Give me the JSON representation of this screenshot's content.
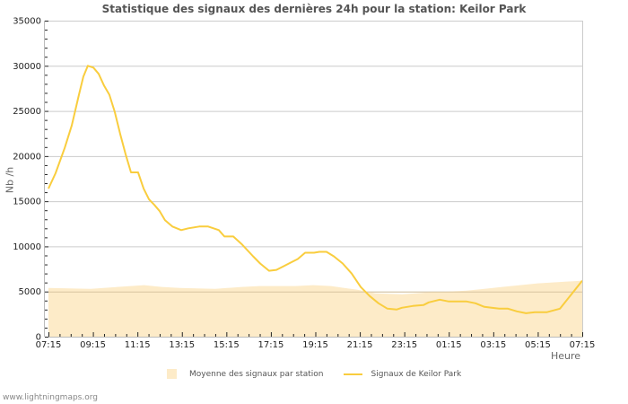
{
  "title": "Statistique des signaux des dernières 24h pour la station: Keilor Park",
  "footer": "www.lightningmaps.org",
  "colors": {
    "average_fill": "#fdebc8",
    "station_line": "#f9cd3e",
    "grid": "#cccccc",
    "avg_reference_line": "#d8c4a0"
  },
  "legend": {
    "average": "Moyenne des signaux par station",
    "station": "Signaux de Keilor Park"
  },
  "axes": {
    "ylabel": "Nb /h",
    "xlabel": "Heure"
  },
  "chart_data": {
    "type": "line",
    "title": "Statistique des signaux des dernières 24h pour la station: Keilor Park",
    "xlabel": "Heure",
    "ylabel": "Nb /h",
    "ylim": [
      0,
      35000
    ],
    "yticks": [
      0,
      5000,
      10000,
      15000,
      20000,
      25000,
      30000,
      35000
    ],
    "xticks": [
      "07:15",
      "09:15",
      "11:15",
      "13:15",
      "15:15",
      "17:15",
      "19:15",
      "21:15",
      "23:15",
      "01:15",
      "03:15",
      "05:15",
      "07:15"
    ],
    "grid": true,
    "legend_position": "bottom",
    "x_hours_range": [
      0,
      24
    ],
    "series": [
      {
        "name": "Moyenne des signaux par station",
        "kind": "area",
        "x_hours": [
          0,
          1.9,
          3.1,
          4.3,
          5.1,
          5.9,
          7.5,
          8.7,
          9.5,
          11.1,
          11.9,
          12.7,
          13.9,
          14.7,
          15.9,
          17.1,
          18.0,
          18.8,
          19.6,
          20.4,
          21.2,
          22.0,
          24.0
        ],
        "values": [
          5400,
          5300,
          5500,
          5700,
          5500,
          5400,
          5300,
          5500,
          5600,
          5600,
          5700,
          5600,
          5200,
          4800,
          4700,
          4900,
          5000,
          5100,
          5300,
          5500,
          5700,
          5900,
          6200
        ]
      },
      {
        "name": "Signaux de Keilor Park",
        "kind": "line",
        "x_hours": [
          0,
          0.32,
          0.73,
          1.05,
          1.37,
          1.57,
          1.77,
          2.02,
          2.26,
          2.5,
          2.74,
          2.98,
          3.23,
          3.47,
          3.71,
          4.03,
          4.28,
          4.52,
          4.76,
          5.0,
          5.24,
          5.57,
          5.97,
          6.29,
          6.78,
          7.18,
          7.42,
          7.66,
          7.91,
          8.31,
          8.71,
          9.2,
          9.52,
          9.92,
          10.25,
          10.57,
          10.89,
          11.21,
          11.54,
          11.94,
          12.18,
          12.5,
          12.83,
          13.23,
          13.63,
          14.04,
          14.44,
          14.84,
          15.24,
          15.65,
          15.89,
          16.38,
          16.86,
          17.1,
          17.59,
          18.0,
          18.8,
          19.2,
          19.6,
          19.92,
          20.26,
          20.66,
          21.06,
          21.47,
          21.87,
          22.4,
          23.0,
          24.0
        ],
        "values": [
          16400,
          18100,
          20900,
          23400,
          26800,
          28800,
          30000,
          29800,
          29100,
          27800,
          26800,
          24900,
          22400,
          20200,
          18200,
          18200,
          16400,
          15200,
          14600,
          13900,
          12900,
          12200,
          11800,
          12000,
          12200,
          12200,
          12000,
          11800,
          11100,
          11100,
          10200,
          8900,
          8100,
          7300,
          7400,
          7800,
          8200,
          8600,
          9300,
          9300,
          9400,
          9400,
          8900,
          8100,
          7000,
          5500,
          4500,
          3700,
          3100,
          3000,
          3200,
          3400,
          3500,
          3800,
          4100,
          3900,
          3900,
          3700,
          3300,
          3200,
          3100,
          3100,
          2800,
          2600,
          2700,
          2700,
          3100,
          6200
        ]
      }
    ]
  }
}
